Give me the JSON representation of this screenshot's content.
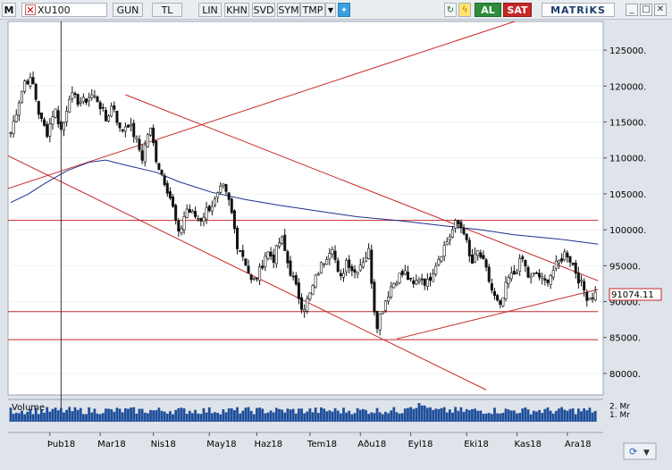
{
  "toolbar": {
    "logo": "M",
    "symbol": "XU100",
    "buttons": [
      "GUN",
      "TL",
      "LIN",
      "KHN",
      "SVD",
      "SYM",
      "TMP"
    ],
    "buy_label": "AL",
    "sell_label": "SAT",
    "brand": "MATRiKS"
  },
  "chart_data": {
    "type": "candlestick",
    "y_ticks": [
      "125000.",
      "120000.",
      "115000.",
      "110000.",
      "105000.",
      "100000.",
      "95000.",
      "90000.",
      "85000.",
      "80000."
    ],
    "y_tick_values": [
      125000,
      120000,
      115000,
      110000,
      105000,
      100000,
      95000,
      90000,
      85000,
      80000
    ],
    "ylim": [
      77000,
      129000
    ],
    "x_ticks": [
      "Þub18",
      "Mar18",
      "Nis18",
      "May18",
      "Haz18",
      "Tem18",
      "Aðu18",
      "Eyl18",
      "Eki18",
      "Kas18",
      "Ara18"
    ],
    "last_price_label": "91074.11",
    "last_price": 91074.11,
    "volume_label": "Volume",
    "volume_ticks": [
      "2. Mr",
      "1. Mr"
    ],
    "volume_tick_values": [
      2,
      1
    ],
    "volume_ylim": [
      0,
      2.6
    ],
    "closes": [
      113500,
      117500,
      121000,
      120500,
      115500,
      113500,
      117000,
      113500,
      118800,
      118000,
      117800,
      118800,
      118000,
      115200,
      117700,
      113500,
      115000,
      113000,
      110000,
      114500,
      109500,
      107000,
      104000,
      99000,
      103000,
      102000,
      101500,
      103000,
      104000,
      106000,
      103500,
      98000,
      96000,
      92500,
      94000,
      97000,
      96000,
      99000,
      95000,
      92000,
      89000,
      91000,
      94000,
      96000,
      98000,
      92500,
      96000,
      94000,
      95500,
      97000,
      86500,
      89500,
      92000,
      93500,
      94000,
      92000,
      93500,
      92500,
      95000,
      97000,
      99000,
      101000,
      100000,
      95000,
      97000,
      94500,
      91000,
      89000,
      93000,
      94000,
      96000,
      93000,
      94000,
      92500,
      94000,
      95500,
      97000,
      95000,
      92500,
      90500,
      91074
    ],
    "ma_line": [
      [
        0,
        103800
      ],
      [
        6,
        104900
      ],
      [
        12,
        106400
      ],
      [
        20,
        108200
      ],
      [
        28,
        109400
      ],
      [
        34,
        109700
      ],
      [
        40,
        109100
      ],
      [
        52,
        108000
      ],
      [
        60,
        106700
      ],
      [
        72,
        105200
      ],
      [
        84,
        104200
      ],
      [
        96,
        103400
      ],
      [
        110,
        102600
      ],
      [
        124,
        101800
      ],
      [
        138,
        101300
      ],
      [
        156,
        100500
      ],
      [
        168,
        100000
      ],
      [
        180,
        99300
      ],
      [
        196,
        98700
      ],
      [
        210,
        98000
      ]
    ],
    "trend_lines": [
      {
        "from": [
          -2,
          105600
        ],
        "to": [
          188,
          130000
        ]
      },
      {
        "from": [
          -2,
          110500
        ],
        "to": [
          170,
          77700
        ]
      },
      {
        "from": [
          41,
          118800
        ],
        "to": [
          210,
          92900
        ]
      },
      {
        "from": [
          138,
          84800
        ],
        "to": [
          210,
          91700
        ]
      },
      {
        "from": [
          -2,
          101300
        ],
        "to": [
          210,
          101300
        ]
      },
      {
        "from": [
          -2,
          88600
        ],
        "to": [
          210,
          88600
        ]
      },
      {
        "from": [
          -2,
          84700
        ],
        "to": [
          210,
          84700
        ]
      }
    ],
    "cursor_x": 18
  }
}
